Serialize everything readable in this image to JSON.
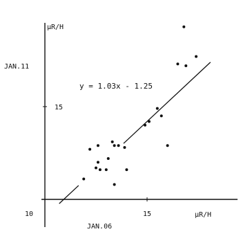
{
  "chart_data": {
    "type": "scatter",
    "title": "",
    "xlabel": "JAN.06",
    "ylabel": "JAN.11",
    "x_unit_label": "µR/H",
    "y_unit_label": "µR/H",
    "xlim": [
      10,
      18
    ],
    "ylim": [
      10,
      20
    ],
    "x_ticks": [
      {
        "value": 10,
        "label": "10"
      },
      {
        "value": 15,
        "label": "15"
      }
    ],
    "y_ticks": [
      {
        "value": 15,
        "label": "15"
      }
    ],
    "grid": false,
    "points": [
      {
        "x": 11.9,
        "y": 11.1
      },
      {
        "x": 12.2,
        "y": 12.7
      },
      {
        "x": 12.5,
        "y": 11.7
      },
      {
        "x": 12.6,
        "y": 12.0
      },
      {
        "x": 12.6,
        "y": 12.9
      },
      {
        "x": 12.7,
        "y": 11.6
      },
      {
        "x": 13.0,
        "y": 11.6
      },
      {
        "x": 13.1,
        "y": 12.2
      },
      {
        "x": 13.3,
        "y": 13.1
      },
      {
        "x": 13.4,
        "y": 12.9
      },
      {
        "x": 13.4,
        "y": 10.8
      },
      {
        "x": 13.6,
        "y": 12.9
      },
      {
        "x": 13.9,
        "y": 12.8
      },
      {
        "x": 14.0,
        "y": 11.6
      },
      {
        "x": 14.9,
        "y": 14.0
      },
      {
        "x": 15.1,
        "y": 14.2
      },
      {
        "x": 15.5,
        "y": 14.9
      },
      {
        "x": 15.7,
        "y": 14.5
      },
      {
        "x": 16.0,
        "y": 12.9
      },
      {
        "x": 16.5,
        "y": 17.3
      },
      {
        "x": 16.8,
        "y": 19.3
      },
      {
        "x": 16.9,
        "y": 17.2
      },
      {
        "x": 17.4,
        "y": 17.7
      }
    ],
    "fit_line": {
      "slope": 1.03,
      "intercept": -1.25,
      "x_range": [
        10.7,
        18.1
      ]
    },
    "annotations": [
      {
        "text": "y = 1.03x - 1.25"
      }
    ]
  }
}
